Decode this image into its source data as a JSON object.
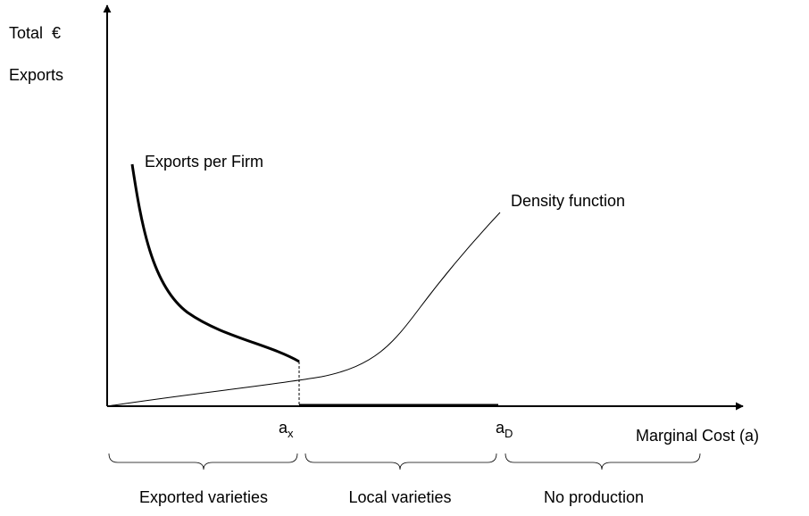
{
  "axes": {
    "y_label_1": "Total  €",
    "y_label_2": "Exports",
    "x_label": "Marginal Cost (a)"
  },
  "curves": {
    "exports_per_firm": "Exports per Firm",
    "density": "Density function"
  },
  "thresholds": [
    {
      "base": "a",
      "sub": "x"
    },
    {
      "base": "a",
      "sub": "D"
    }
  ],
  "regions": [
    "Exported varieties",
    "Local varieties",
    "No production"
  ]
}
